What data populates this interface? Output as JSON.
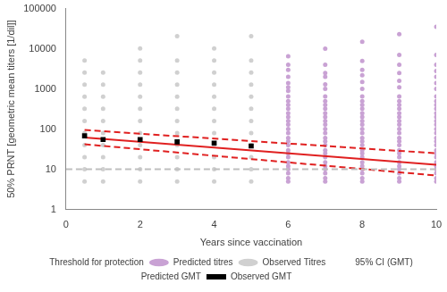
{
  "chart_data": {
    "type": "scatter",
    "x_label": "Years since vaccination",
    "y_label": "50% PRNT [geometric mean titers [1/dil]]",
    "log": "y",
    "grid": false,
    "legend": "bottom",
    "xlim": [
      0,
      10
    ],
    "xticks": [
      0,
      2,
      4,
      6,
      8,
      10
    ],
    "ylim": [
      1,
      100000
    ],
    "yticks": [
      1,
      10,
      100,
      1000,
      10000,
      100000
    ],
    "series": [
      {
        "name": "Threshold for protection",
        "type": "line",
        "color": "#bfbfbf",
        "line_style": "dashed",
        "marker": "none",
        "x": [
          0,
          10
        ],
        "values": [
          10,
          10
        ]
      },
      {
        "name": "Predicted titres",
        "type": "scatter",
        "color": "#c9a2d4",
        "marker": "circle",
        "x": [
          6,
          6,
          6,
          6,
          6,
          6,
          6,
          6,
          6,
          6,
          6,
          6,
          6,
          6,
          6,
          6,
          6,
          6,
          6,
          6,
          6,
          6,
          6,
          6,
          6,
          6,
          6,
          6,
          6,
          7,
          7,
          7,
          7,
          7,
          7,
          7,
          7,
          7,
          7,
          7,
          7,
          7,
          7,
          7,
          7,
          7,
          7,
          7,
          7,
          7,
          7,
          7,
          7,
          7,
          7,
          7,
          7,
          8,
          8,
          8,
          8,
          8,
          8,
          8,
          8,
          8,
          8,
          8,
          8,
          8,
          8,
          8,
          8,
          8,
          8,
          8,
          8,
          8,
          8,
          8,
          8,
          8,
          8,
          8,
          8,
          9,
          9,
          9,
          9,
          9,
          9,
          9,
          9,
          9,
          9,
          9,
          9,
          9,
          9,
          9,
          9,
          9,
          9,
          9,
          9,
          9,
          9,
          9,
          9,
          9,
          9,
          9,
          9,
          10,
          10,
          10,
          10,
          10,
          10,
          10,
          10,
          10,
          10,
          10,
          10,
          10,
          10,
          10,
          10,
          10,
          10,
          10,
          10,
          10,
          10,
          10,
          10,
          10,
          10,
          10,
          10,
          10
        ],
        "values": [
          5,
          6,
          8,
          10,
          12,
          15,
          20,
          25,
          30,
          40,
          50,
          60,
          80,
          100,
          130,
          160,
          200,
          250,
          320,
          400,
          500,
          650,
          900,
          1100,
          1400,
          2000,
          3000,
          4000,
          6500,
          5,
          6,
          8,
          10,
          12,
          15,
          20,
          25,
          30,
          40,
          50,
          60,
          80,
          100,
          130,
          160,
          200,
          250,
          320,
          400,
          500,
          650,
          1000,
          1300,
          2000,
          2500,
          4000,
          10000,
          5,
          6,
          8,
          10,
          12,
          15,
          20,
          25,
          30,
          40,
          50,
          60,
          80,
          100,
          130,
          160,
          200,
          250,
          320,
          400,
          500,
          650,
          1000,
          1500,
          2200,
          3000,
          5000,
          15000,
          5,
          6,
          8,
          10,
          12,
          15,
          20,
          25,
          30,
          40,
          50,
          60,
          80,
          100,
          130,
          160,
          200,
          250,
          320,
          400,
          500,
          650,
          1100,
          1600,
          2500,
          4000,
          7000,
          23000,
          5,
          6,
          8,
          10,
          12,
          15,
          20,
          25,
          30,
          40,
          50,
          60,
          80,
          100,
          130,
          160,
          200,
          250,
          320,
          400,
          500,
          650,
          1000,
          1400,
          2000,
          2800,
          4000,
          7000,
          35000
        ]
      },
      {
        "name": "Observed Titres",
        "type": "scatter",
        "color": "#d0d0d0",
        "marker": "circle",
        "x": [
          0.5,
          0.5,
          0.5,
          0.5,
          0.5,
          0.5,
          0.5,
          0.5,
          0.5,
          0.5,
          0.5,
          1,
          1,
          1,
          1,
          1,
          1,
          1,
          1,
          1,
          1,
          2,
          2,
          2,
          2,
          2,
          2,
          2,
          2,
          2,
          2,
          2,
          2,
          3,
          3,
          3,
          3,
          3,
          3,
          3,
          3,
          3,
          3,
          3,
          3,
          4,
          4,
          4,
          4,
          4,
          4,
          4,
          4,
          4,
          4,
          4,
          4,
          5,
          5,
          5,
          5,
          5,
          5,
          5,
          5,
          5,
          5,
          5,
          5
        ],
        "values": [
          5,
          10,
          20,
          40,
          80,
          160,
          320,
          640,
          1280,
          2560,
          5120,
          5,
          10,
          20,
          40,
          80,
          160,
          320,
          640,
          1280,
          2560,
          5,
          10,
          20,
          40,
          80,
          160,
          320,
          640,
          1280,
          2560,
          5120,
          10240,
          5,
          10,
          20,
          40,
          80,
          160,
          320,
          640,
          1280,
          2560,
          5120,
          20480,
          5,
          10,
          20,
          40,
          80,
          160,
          320,
          640,
          1280,
          2560,
          5120,
          10240,
          5,
          10,
          20,
          40,
          80,
          160,
          320,
          640,
          1280,
          2560,
          5120,
          20480
        ]
      },
      {
        "name": "95% CI (GMT)",
        "type": "line",
        "color": "#e02020",
        "line_style": "dashed",
        "marker": "none",
        "x": [
          0.5,
          10
        ],
        "values": [
          95,
          25
        ]
      },
      {
        "name": "Predicted GMT",
        "type": "line",
        "color": "#e02020",
        "line_style": "solid",
        "marker": "none",
        "x": [
          0.5,
          10
        ],
        "values": [
          62,
          13
        ]
      },
      {
        "name": "Observed GMT",
        "type": "scatter",
        "color": "#000000",
        "marker": "square",
        "x": [
          0.5,
          1,
          2,
          3,
          4,
          5
        ],
        "values": [
          68,
          55,
          55,
          48,
          45,
          38
        ]
      },
      {
        "type": "line",
        "color": "#e02020",
        "line_style": "dashed",
        "marker": "none",
        "x": [
          0.5,
          10
        ],
        "values": [
          42,
          7
        ]
      }
    ]
  }
}
